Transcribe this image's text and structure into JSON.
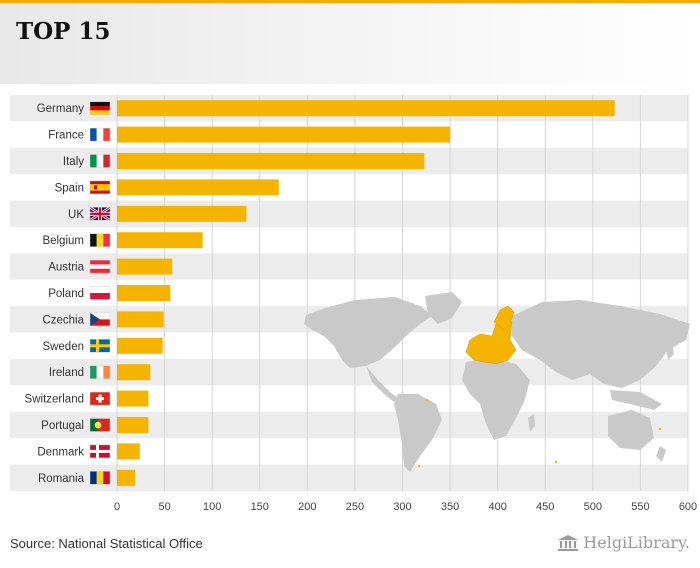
{
  "header": {
    "title": "TOP 15"
  },
  "source": "Source: National Statistical Office",
  "logo": {
    "text": "HelgiLibrary."
  },
  "colors": {
    "bar": "#f5b400",
    "accent": "#f2ad00",
    "map_land": "#c9c9c9",
    "map_highlight": "#f5b400"
  },
  "chart_data": {
    "type": "bar",
    "orientation": "horizontal",
    "title": "TOP 15",
    "xlabel": "",
    "ylabel": "",
    "xlim": [
      0,
      600
    ],
    "xticks": [
      0,
      50,
      100,
      150,
      200,
      250,
      300,
      350,
      400,
      450,
      500,
      550,
      600
    ],
    "grid": true,
    "categories": [
      "Germany",
      "France",
      "Italy",
      "Spain",
      "UK",
      "Belgium",
      "Austria",
      "Poland",
      "Czechia",
      "Sweden",
      "Ireland",
      "Switzerland",
      "Portugal",
      "Denmark",
      "Romania"
    ],
    "flags": [
      "germany-flag",
      "france-flag",
      "italy-flag",
      "spain-flag",
      "uk-flag",
      "belgium-flag",
      "austria-flag",
      "poland-flag",
      "czechia-flag",
      "sweden-flag",
      "ireland-flag",
      "switzerland-flag",
      "portugal-flag",
      "denmark-flag",
      "romania-flag"
    ],
    "values": [
      523,
      350,
      323,
      170,
      136,
      90,
      58,
      56,
      49,
      48,
      35,
      33,
      33,
      24,
      19
    ]
  }
}
